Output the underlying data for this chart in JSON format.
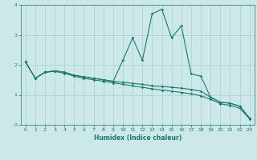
{
  "xlabel": "Humidex (Indice chaleur)",
  "background_color": "#cde8e8",
  "line_color": "#1a7a6e",
  "grid_color": "#aacfcf",
  "x_values": [
    0,
    1,
    2,
    3,
    4,
    5,
    6,
    7,
    8,
    9,
    10,
    11,
    12,
    13,
    14,
    15,
    16,
    17,
    18,
    19,
    20,
    21,
    22,
    23
  ],
  "series1": [
    2.1,
    1.55,
    1.75,
    1.8,
    1.75,
    1.65,
    1.6,
    1.55,
    1.5,
    1.45,
    2.15,
    2.9,
    2.15,
    3.7,
    3.85,
    2.9,
    3.3,
    1.7,
    1.62,
    0.92,
    0.75,
    0.72,
    0.62,
    0.22
  ],
  "series2": [
    2.1,
    1.55,
    1.75,
    1.8,
    1.75,
    1.65,
    1.6,
    1.55,
    1.5,
    1.45,
    1.42,
    1.38,
    1.35,
    1.3,
    1.28,
    1.25,
    1.22,
    1.18,
    1.12,
    0.92,
    0.75,
    0.72,
    0.62,
    0.22
  ],
  "series3": [
    2.1,
    1.55,
    1.75,
    1.78,
    1.72,
    1.62,
    1.55,
    1.5,
    1.45,
    1.4,
    1.35,
    1.3,
    1.25,
    1.2,
    1.16,
    1.12,
    1.08,
    1.03,
    0.97,
    0.85,
    0.7,
    0.65,
    0.55,
    0.2
  ],
  "ylim": [
    0,
    4
  ],
  "xlim": [
    -0.5,
    23.5
  ],
  "yticks": [
    0,
    1,
    2,
    3,
    4
  ],
  "xticks": [
    0,
    1,
    2,
    3,
    4,
    5,
    6,
    7,
    8,
    9,
    10,
    11,
    12,
    13,
    14,
    15,
    16,
    17,
    18,
    19,
    20,
    21,
    22,
    23
  ]
}
